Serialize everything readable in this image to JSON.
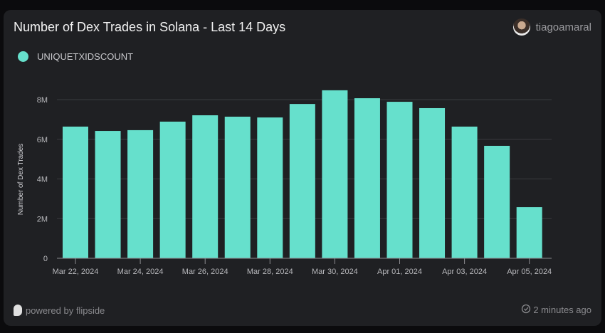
{
  "header": {
    "title": "Number of Dex Trades in Solana - Last 14 Days",
    "username": "tiagoamaral"
  },
  "footer": {
    "powered_by": "powered by flipside",
    "updated": "2 minutes ago",
    "check_icon": "check-circle-icon"
  },
  "colors": {
    "bar": "#66e0cc",
    "grid": "#3a3b3f",
    "axis_text": "#b8b8bc"
  },
  "chart_data": {
    "type": "bar",
    "title": "Number of Dex Trades in Solana - Last 14 Days",
    "ylabel": "Number of Dex Trades",
    "xlabel": "",
    "legend": {
      "position": "top-left",
      "entries": [
        "UNIQUETXIDSCOUNT"
      ]
    },
    "ylim": [
      0,
      8500000
    ],
    "yticks": [
      0,
      2000000,
      4000000,
      6000000,
      8000000
    ],
    "ytick_labels": [
      "0",
      "2M",
      "4M",
      "6M",
      "8M"
    ],
    "grid": true,
    "categories": [
      "Mar 22, 2024",
      "Mar 23, 2024",
      "Mar 24, 2024",
      "Mar 25, 2024",
      "Mar 26, 2024",
      "Mar 27, 2024",
      "Mar 28, 2024",
      "Mar 29, 2024",
      "Mar 30, 2024",
      "Mar 31, 2024",
      "Apr 01, 2024",
      "Apr 02, 2024",
      "Apr 03, 2024",
      "Apr 04, 2024",
      "Apr 05, 2024"
    ],
    "xtick_labels": [
      "Mar 22, 2024",
      "Mar 24, 2024",
      "Mar 26, 2024",
      "Mar 28, 2024",
      "Mar 30, 2024",
      "Apr 01, 2024",
      "Apr 03, 2024",
      "Apr 05, 2024"
    ],
    "series": [
      {
        "name": "UNIQUETXIDSCOUNT",
        "values": [
          6640000,
          6420000,
          6460000,
          6890000,
          7210000,
          7140000,
          7100000,
          7780000,
          8470000,
          8070000,
          7890000,
          7570000,
          6640000,
          5670000,
          2580000
        ]
      }
    ]
  }
}
